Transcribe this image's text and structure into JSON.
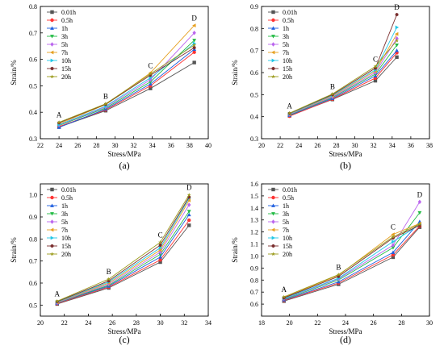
{
  "legend": [
    "0.01h",
    "0.5h",
    "1h",
    "3h",
    "5h",
    "7h",
    "10h",
    "15h",
    "20h"
  ],
  "series_colors": [
    "#555555",
    "#ff3333",
    "#1f5fe0",
    "#22bb44",
    "#bb66ee",
    "#e6a020",
    "#22c7e6",
    "#7a2e2e",
    "#9a9a1a"
  ],
  "chart_data": [
    {
      "type": "line",
      "panel_label": "(a)",
      "xlabel": "Stress/MPa",
      "ylabel": "Strain/%",
      "xlim": [
        22,
        40
      ],
      "ylim": [
        0.3,
        0.8
      ],
      "xticks": [
        22,
        24,
        26,
        28,
        30,
        32,
        34,
        36,
        38,
        40
      ],
      "xtick_labels": [
        "22",
        "24",
        "26",
        "28",
        "30",
        "32",
        "34",
        "36",
        "38",
        "40"
      ],
      "yticks": [
        0.3,
        0.4,
        0.5,
        0.6,
        0.7,
        0.8
      ],
      "ytick_labels": [
        "0.3",
        "0.4",
        "0.5",
        "0.6",
        "0.7",
        "0.8"
      ],
      "x": [
        24,
        29,
        33.8,
        38.5
      ],
      "point_labels": [
        "A",
        "B",
        "C",
        "D"
      ],
      "legend_position": "top-left",
      "series": [
        {
          "name": "0.01h",
          "values": [
            0.344,
            0.406,
            0.49,
            0.588
          ]
        },
        {
          "name": "0.5h",
          "values": [
            0.346,
            0.409,
            0.5,
            0.627
          ]
        },
        {
          "name": "1h",
          "values": [
            0.343,
            0.412,
            0.507,
            0.638
          ]
        },
        {
          "name": "3h",
          "values": [
            0.35,
            0.416,
            0.515,
            0.672
          ]
        },
        {
          "name": "5h",
          "values": [
            0.352,
            0.42,
            0.523,
            0.7
          ]
        },
        {
          "name": "7h",
          "values": [
            0.356,
            0.429,
            0.549,
            0.728
          ]
        },
        {
          "name": "10h",
          "values": [
            0.353,
            0.423,
            0.53,
            0.66
          ]
        },
        {
          "name": "15h",
          "values": [
            0.36,
            0.43,
            0.54,
            0.644
          ]
        },
        {
          "name": "20h",
          "values": [
            0.362,
            0.432,
            0.545,
            0.654
          ]
        }
      ]
    },
    {
      "type": "line",
      "panel_label": "(b)",
      "xlabel": "Stress/MPa",
      "ylabel": "Strain/%",
      "xlim": [
        20,
        38
      ],
      "ylim": [
        0.3,
        0.9
      ],
      "xticks": [
        20,
        22,
        24,
        26,
        28,
        30,
        32,
        34,
        36,
        38
      ],
      "xtick_labels": [
        "20",
        "22",
        "24",
        "26",
        "28",
        "30",
        "32",
        "34",
        "36",
        "38"
      ],
      "yticks": [
        0.3,
        0.4,
        0.5,
        0.6,
        0.7,
        0.8,
        0.9
      ],
      "ytick_labels": [
        "0.3",
        "0.4",
        "0.5",
        "0.6",
        "0.7",
        "0.8",
        "0.9"
      ],
      "x": [
        23,
        27.6,
        32.2,
        34.5
      ],
      "point_labels": [
        "A",
        "B",
        "C",
        "D"
      ],
      "legend_position": "top-left",
      "series": [
        {
          "name": "0.01h",
          "values": [
            0.404,
            0.478,
            0.563,
            0.67
          ]
        },
        {
          "name": "0.5h",
          "values": [
            0.402,
            0.48,
            0.575,
            0.69
          ]
        },
        {
          "name": "1h",
          "values": [
            0.406,
            0.483,
            0.585,
            0.7
          ]
        },
        {
          "name": "3h",
          "values": [
            0.408,
            0.487,
            0.593,
            0.725
          ]
        },
        {
          "name": "5h",
          "values": [
            0.41,
            0.49,
            0.6,
            0.755
          ]
        },
        {
          "name": "7h",
          "values": [
            0.412,
            0.494,
            0.607,
            0.775
          ]
        },
        {
          "name": "10h",
          "values": [
            0.413,
            0.497,
            0.612,
            0.805
          ]
        },
        {
          "name": "15h",
          "values": [
            0.415,
            0.5,
            0.62,
            0.863
          ]
        },
        {
          "name": "20h",
          "values": [
            0.416,
            0.503,
            0.628,
            0.745
          ]
        }
      ]
    },
    {
      "type": "line",
      "panel_label": "(c)",
      "xlabel": "Stress/MPa",
      "ylabel": "Strain/%",
      "xlim": [
        20,
        34
      ],
      "ylim": [
        0.45,
        1.05
      ],
      "xticks": [
        20,
        22,
        24,
        26,
        28,
        30,
        32,
        34
      ],
      "xtick_labels": [
        "20",
        "22",
        "24",
        "26",
        "28",
        "30",
        "32",
        "34"
      ],
      "yticks": [
        0.5,
        0.6,
        0.7,
        0.8,
        0.9,
        1.0
      ],
      "ytick_labels": [
        "0.5",
        "0.6",
        "0.7",
        "0.8",
        "0.9",
        "1.0"
      ],
      "x": [
        21.4,
        25.7,
        30,
        32.4
      ],
      "point_labels": [
        "A",
        "B",
        "C",
        "D"
      ],
      "legend_position": "top-left",
      "series": [
        {
          "name": "0.01h",
          "values": [
            0.505,
            0.578,
            0.695,
            0.862
          ]
        },
        {
          "name": "0.5h",
          "values": [
            0.507,
            0.582,
            0.705,
            0.885
          ]
        },
        {
          "name": "1h",
          "values": [
            0.509,
            0.586,
            0.718,
            0.91
          ]
        },
        {
          "name": "3h",
          "values": [
            0.51,
            0.59,
            0.73,
            0.925
          ]
        },
        {
          "name": "5h",
          "values": [
            0.511,
            0.595,
            0.74,
            0.955
          ]
        },
        {
          "name": "7h",
          "values": [
            0.513,
            0.6,
            0.75,
            0.975
          ]
        },
        {
          "name": "10h",
          "values": [
            0.514,
            0.605,
            0.76,
            0.985
          ]
        },
        {
          "name": "15h",
          "values": [
            0.516,
            0.61,
            0.772,
            0.99
          ]
        },
        {
          "name": "20h",
          "values": [
            0.518,
            0.618,
            0.785,
            1.0
          ]
        }
      ]
    },
    {
      "type": "line",
      "panel_label": "(d)",
      "xlabel": "Stress/MPa",
      "ylabel": "Strain/%",
      "xlim": [
        18,
        30
      ],
      "ylim": [
        0.5,
        1.6
      ],
      "xticks": [
        18,
        20,
        22,
        24,
        26,
        28,
        30
      ],
      "xtick_labels": [
        "18",
        "20",
        "22",
        "24",
        "26",
        "28",
        "30"
      ],
      "yticks": [
        0.6,
        0.7,
        0.8,
        0.9,
        1.0,
        1.1,
        1.2,
        1.3,
        1.4,
        1.5,
        1.6
      ],
      "ytick_labels": [
        "0.6",
        "0.7",
        "0.8",
        "0.9",
        "1.0",
        "1.1",
        "1.2",
        "1.3",
        "1.4",
        "1.5",
        "1.6"
      ],
      "x": [
        19.6,
        23.5,
        27.4,
        29.3
      ],
      "point_labels": [
        "A",
        "B",
        "C",
        "D"
      ],
      "legend_position": "top-left",
      "series": [
        {
          "name": "0.01h",
          "values": [
            0.625,
            0.765,
            0.99,
            1.24
          ]
        },
        {
          "name": "0.5h",
          "values": [
            0.63,
            0.775,
            1.01,
            1.25
          ]
        },
        {
          "name": "1h",
          "values": [
            0.635,
            0.785,
            1.03,
            1.285
          ]
        },
        {
          "name": "3h",
          "values": [
            0.64,
            0.8,
            1.07,
            1.36
          ]
        },
        {
          "name": "5h",
          "values": [
            0.645,
            0.81,
            1.09,
            1.45
          ]
        },
        {
          "name": "7h",
          "values": [
            0.655,
            0.84,
            1.18,
            1.27
          ]
        },
        {
          "name": "10h",
          "values": [
            0.648,
            0.815,
            1.12,
            1.26
          ]
        },
        {
          "name": "15h",
          "values": [
            0.652,
            0.83,
            1.15,
            1.255
          ]
        },
        {
          "name": "20h",
          "values": [
            0.66,
            0.845,
            1.16,
            1.265
          ]
        }
      ]
    }
  ]
}
